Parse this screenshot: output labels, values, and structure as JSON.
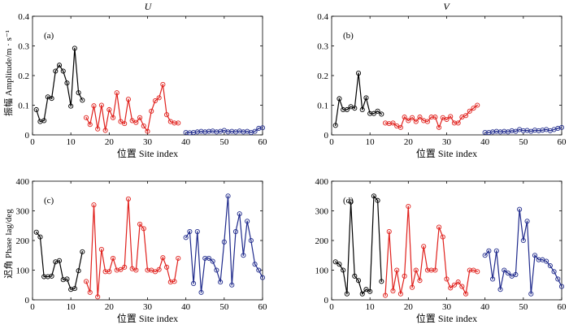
{
  "figure": {
    "col_titles": [
      "U",
      "V"
    ],
    "ylabel_top": "振幅 Amplitude/m · s⁻¹",
    "ylabel_bottom": "迟角 Phase lag/deg"
  },
  "colors": {
    "black": "#000000",
    "red": "#e0201c",
    "blue": "#1f2a8c"
  },
  "chart_data": [
    {
      "type": "scatter",
      "panel": "(a)",
      "title": "U",
      "xlabel": "位置 Site index",
      "ylabel": "振幅 Amplitude/m · s⁻¹",
      "xlim": [
        0,
        60
      ],
      "ylim": [
        0,
        0.4
      ],
      "xticks": [
        0,
        10,
        20,
        30,
        40,
        50,
        60
      ],
      "yticks": [
        0,
        0.1,
        0.2,
        0.3,
        0.4
      ],
      "yticklabels": [
        "0",
        "0.1",
        "0.2",
        "0.3",
        "0.4"
      ],
      "series": [
        {
          "color": "black",
          "x": [
            1,
            2,
            3,
            4,
            5,
            6,
            7,
            8,
            9,
            10,
            11,
            12,
            13
          ],
          "y": [
            0.085,
            0.045,
            0.048,
            0.128,
            0.123,
            0.215,
            0.235,
            0.215,
            0.175,
            0.097,
            0.292,
            0.142,
            0.117
          ]
        },
        {
          "color": "red",
          "x": [
            14,
            15,
            16,
            17,
            18,
            19,
            20,
            21,
            22,
            23,
            24,
            25,
            26,
            27,
            28,
            29,
            30,
            31,
            32,
            33,
            34,
            35,
            36,
            37,
            38
          ],
          "y": [
            0.058,
            0.035,
            0.098,
            0.02,
            0.1,
            0.015,
            0.085,
            0.058,
            0.142,
            0.045,
            0.038,
            0.12,
            0.048,
            0.042,
            0.058,
            0.03,
            0.012,
            0.08,
            0.115,
            0.125,
            0.17,
            0.068,
            0.045,
            0.04,
            0.04
          ]
        },
        {
          "color": "blue",
          "x": [
            40,
            41,
            42,
            43,
            44,
            45,
            46,
            47,
            48,
            49,
            50,
            51,
            52,
            53,
            54,
            55,
            56,
            57,
            58,
            59,
            60
          ],
          "y": [
            0.008,
            0.007,
            0.008,
            0.01,
            0.012,
            0.01,
            0.012,
            0.013,
            0.01,
            0.012,
            0.015,
            0.01,
            0.012,
            0.01,
            0.013,
            0.01,
            0.012,
            0.008,
            0.012,
            0.022,
            0.024
          ]
        }
      ]
    },
    {
      "type": "scatter",
      "panel": "(b)",
      "title": "V",
      "xlabel": "位置 Site index",
      "ylabel": "",
      "xlim": [
        0,
        60
      ],
      "ylim": [
        0,
        0.4
      ],
      "xticks": [
        0,
        10,
        20,
        30,
        40,
        50,
        60
      ],
      "yticks": [
        0,
        0.1,
        0.2,
        0.3,
        0.4
      ],
      "yticklabels": [
        "0",
        "0.1",
        "0.2",
        "0.3",
        "0.4"
      ],
      "series": [
        {
          "color": "black",
          "x": [
            1,
            2,
            3,
            4,
            5,
            6,
            7,
            8,
            9,
            10,
            11,
            12,
            13
          ],
          "y": [
            0.032,
            0.122,
            0.085,
            0.085,
            0.095,
            0.09,
            0.208,
            0.085,
            0.125,
            0.072,
            0.072,
            0.08,
            0.07
          ]
        },
        {
          "color": "red",
          "x": [
            14,
            15,
            16,
            17,
            18,
            19,
            20,
            21,
            22,
            23,
            24,
            25,
            26,
            27,
            28,
            29,
            30,
            31,
            32,
            33,
            34,
            35,
            36,
            37,
            38
          ],
          "y": [
            0.04,
            0.038,
            0.04,
            0.03,
            0.025,
            0.06,
            0.048,
            0.058,
            0.045,
            0.06,
            0.048,
            0.045,
            0.06,
            0.06,
            0.025,
            0.058,
            0.052,
            0.062,
            0.04,
            0.04,
            0.06,
            0.065,
            0.08,
            0.09,
            0.1
          ]
        },
        {
          "color": "blue",
          "x": [
            40,
            41,
            42,
            43,
            44,
            45,
            46,
            47,
            48,
            49,
            50,
            51,
            52,
            53,
            54,
            55,
            56,
            57,
            58,
            59,
            60
          ],
          "y": [
            0.008,
            0.008,
            0.01,
            0.012,
            0.01,
            0.012,
            0.01,
            0.014,
            0.012,
            0.018,
            0.014,
            0.015,
            0.012,
            0.016,
            0.014,
            0.016,
            0.018,
            0.014,
            0.018,
            0.022,
            0.025
          ]
        }
      ]
    },
    {
      "type": "scatter",
      "panel": "(c)",
      "title": "",
      "xlabel": "位置 Site index",
      "ylabel": "迟角 Phase lag/deg",
      "xlim": [
        0,
        60
      ],
      "ylim": [
        0,
        400
      ],
      "xticks": [
        0,
        10,
        20,
        30,
        40,
        50,
        60
      ],
      "yticks": [
        0,
        100,
        200,
        300,
        400
      ],
      "yticklabels": [
        "0",
        "100",
        "200",
        "300",
        "400"
      ],
      "series": [
        {
          "color": "black",
          "x": [
            1,
            2,
            3,
            4,
            5,
            6,
            7,
            8,
            9,
            10,
            11,
            12,
            13
          ],
          "y": [
            228,
            212,
            78,
            78,
            80,
            128,
            132,
            68,
            70,
            35,
            38,
            98,
            162
          ]
        },
        {
          "color": "red",
          "x": [
            14,
            15,
            16,
            17,
            18,
            19,
            20,
            21,
            22,
            23,
            24,
            25,
            26,
            27,
            28,
            29,
            30,
            31,
            32,
            33,
            34,
            35,
            36,
            37,
            38
          ],
          "y": [
            62,
            25,
            320,
            10,
            170,
            95,
            95,
            140,
            100,
            102,
            110,
            340,
            105,
            100,
            255,
            240,
            100,
            100,
            95,
            102,
            142,
            110,
            60,
            62,
            140
          ]
        },
        {
          "color": "blue",
          "x": [
            40,
            41,
            42,
            43,
            44,
            45,
            46,
            47,
            48,
            49,
            50,
            51,
            52,
            53,
            54,
            55,
            56,
            57,
            58,
            59,
            60
          ],
          "y": [
            210,
            230,
            55,
            230,
            25,
            140,
            140,
            130,
            100,
            60,
            195,
            350,
            50,
            230,
            290,
            150,
            265,
            200,
            120,
            100,
            75
          ]
        }
      ]
    },
    {
      "type": "scatter",
      "panel": "(d)",
      "title": "",
      "xlabel": "位置 Site index",
      "ylabel": "",
      "xlim": [
        0,
        60
      ],
      "ylim": [
        0,
        400
      ],
      "xticks": [
        0,
        10,
        20,
        30,
        40,
        50,
        60
      ],
      "yticks": [
        0,
        100,
        200,
        300,
        400
      ],
      "yticklabels": [
        "0",
        "100",
        "200",
        "300",
        "400"
      ],
      "series": [
        {
          "color": "black",
          "x": [
            1,
            2,
            3,
            4,
            5,
            6,
            7,
            8,
            9,
            10,
            11,
            12,
            13
          ],
          "y": [
            128,
            120,
            100,
            20,
            330,
            80,
            65,
            20,
            35,
            28,
            350,
            335,
            62
          ]
        },
        {
          "color": "red",
          "x": [
            14,
            15,
            16,
            17,
            18,
            19,
            20,
            21,
            22,
            23,
            24,
            25,
            26,
            27,
            28,
            29,
            30,
            31,
            32,
            33,
            34,
            35,
            36,
            37,
            38
          ],
          "y": [
            15,
            230,
            30,
            100,
            20,
            80,
            315,
            42,
            100,
            65,
            180,
            100,
            100,
            100,
            245,
            212,
            70,
            40,
            50,
            60,
            45,
            20,
            100,
            100,
            95
          ]
        },
        {
          "color": "blue",
          "x": [
            40,
            41,
            42,
            43,
            44,
            45,
            46,
            47,
            48,
            49,
            50,
            51,
            52,
            53,
            54,
            55,
            56,
            57,
            58,
            59,
            60
          ],
          "y": [
            150,
            165,
            70,
            165,
            35,
            100,
            90,
            80,
            85,
            305,
            200,
            265,
            20,
            150,
            135,
            135,
            130,
            115,
            95,
            70,
            45
          ]
        }
      ]
    }
  ]
}
